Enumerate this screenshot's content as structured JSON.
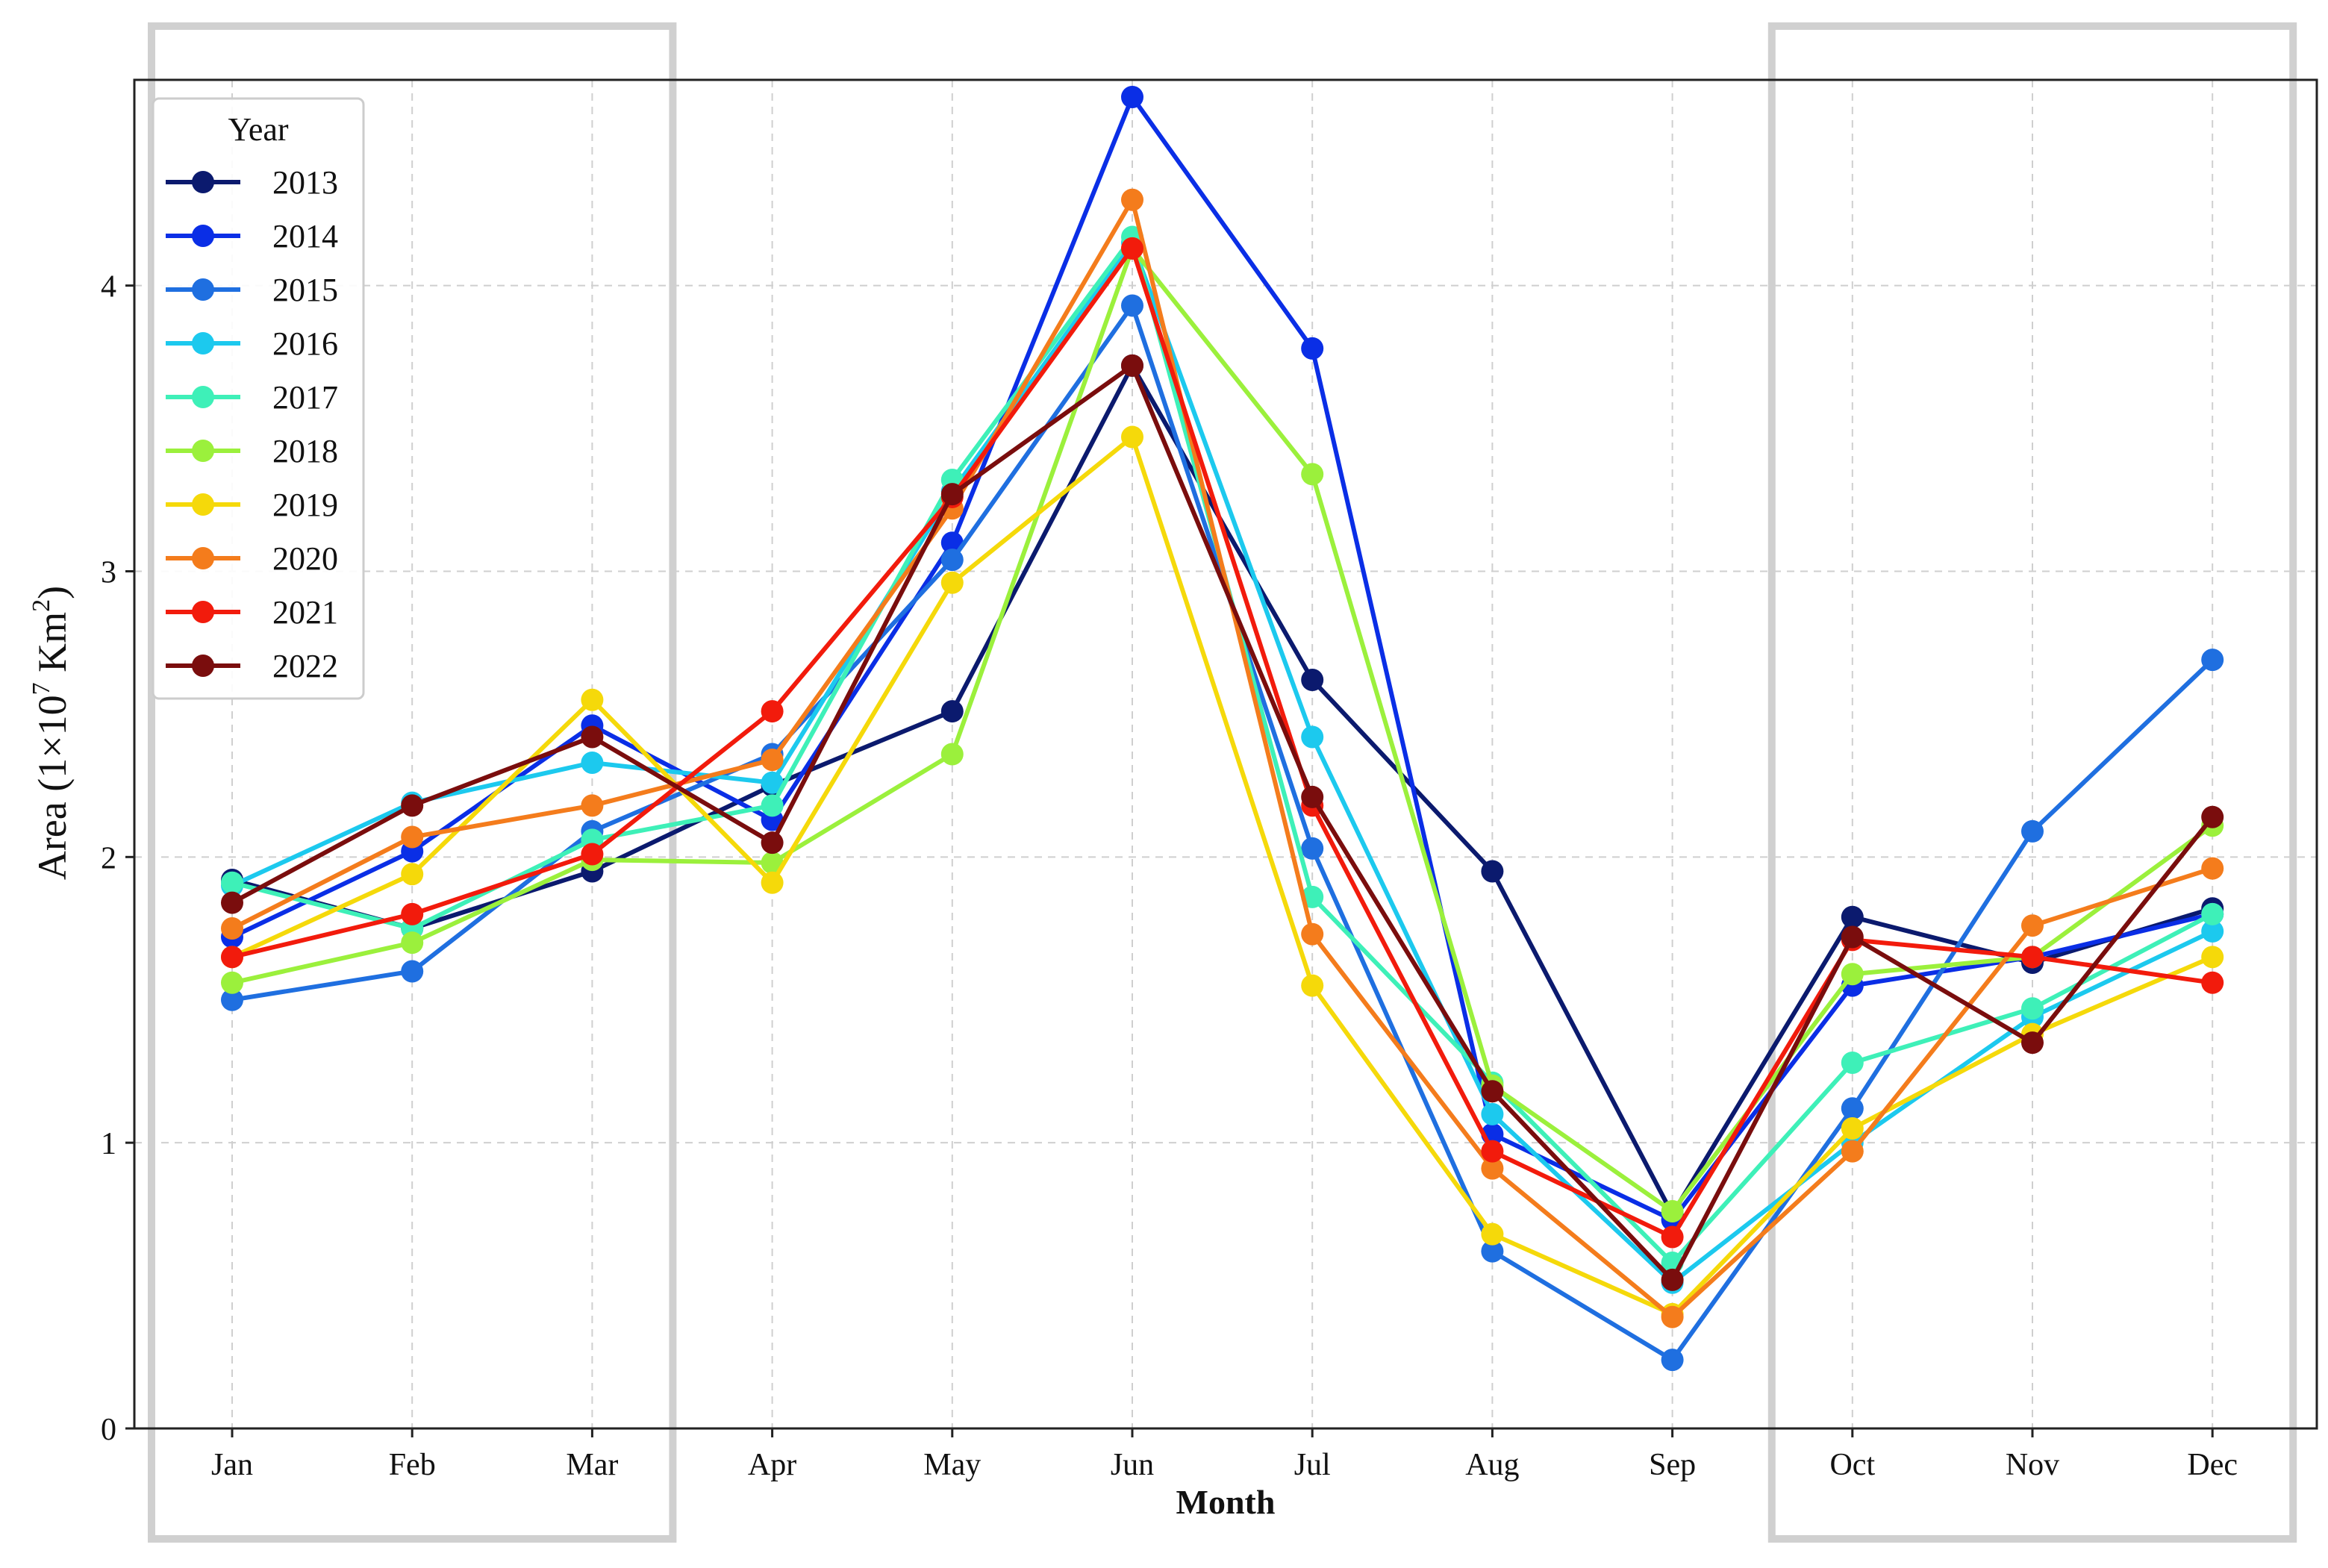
{
  "chart_data": {
    "type": "line",
    "categories": [
      "Jan",
      "Feb",
      "Mar",
      "Apr",
      "May",
      "Jun",
      "Jul",
      "Aug",
      "Sep",
      "Oct",
      "Nov",
      "Dec"
    ],
    "xlabel": "Month",
    "ylabel_main": "Area (1×10",
    "ylabel_sup1": "7",
    "ylabel_mid": " Km",
    "ylabel_sup2": "2",
    "ylabel_end": ")",
    "ylim": [
      0,
      4.72
    ],
    "yticks": [
      0,
      1,
      2,
      3,
      4
    ],
    "grid": true,
    "legend": {
      "title": "Year",
      "position": "top-left"
    },
    "highlight_months": [
      [
        "Jan",
        "Mar"
      ],
      [
        "Oct",
        "Dec"
      ]
    ],
    "series": [
      {
        "name": "2013",
        "color": "#0b1a6e",
        "values": [
          1.92,
          1.75,
          1.95,
          2.25,
          2.51,
          3.72,
          2.62,
          1.95,
          0.75,
          1.79,
          1.63,
          1.82
        ]
      },
      {
        "name": "2014",
        "color": "#0a2ee6",
        "values": [
          1.72,
          2.02,
          2.46,
          2.13,
          3.1,
          4.66,
          3.78,
          1.03,
          0.73,
          1.55,
          1.65,
          1.8
        ]
      },
      {
        "name": "2015",
        "color": "#1f6fe0",
        "values": [
          1.5,
          1.6,
          2.09,
          2.36,
          3.04,
          3.93,
          2.03,
          0.62,
          0.24,
          1.12,
          2.09,
          2.69
        ]
      },
      {
        "name": "2016",
        "color": "#1cc9ee",
        "values": [
          1.9,
          2.19,
          2.33,
          2.26,
          3.28,
          4.15,
          2.42,
          1.1,
          0.51,
          1.0,
          1.44,
          1.74
        ]
      },
      {
        "name": "2017",
        "color": "#3ef0b8",
        "values": [
          1.91,
          1.75,
          2.06,
          2.18,
          3.32,
          4.17,
          1.86,
          1.21,
          0.58,
          1.28,
          1.47,
          1.8
        ]
      },
      {
        "name": "2018",
        "color": "#9bf03c",
        "values": [
          1.56,
          1.7,
          1.99,
          1.98,
          2.36,
          4.13,
          3.34,
          1.2,
          0.76,
          1.59,
          1.65,
          2.11
        ]
      },
      {
        "name": "2019",
        "color": "#f5d90a",
        "values": [
          1.65,
          1.94,
          2.55,
          1.91,
          2.96,
          3.47,
          1.55,
          0.68,
          0.4,
          1.05,
          1.38,
          1.65
        ]
      },
      {
        "name": "2020",
        "color": "#f47c1c",
        "values": [
          1.75,
          2.07,
          2.18,
          2.34,
          3.22,
          4.3,
          1.73,
          0.91,
          0.39,
          0.97,
          1.76,
          1.96
        ]
      },
      {
        "name": "2021",
        "color": "#f21b0c",
        "values": [
          1.65,
          1.8,
          2.01,
          2.51,
          3.26,
          4.13,
          2.18,
          0.97,
          0.67,
          1.71,
          1.65,
          1.56
        ]
      },
      {
        "name": "2022",
        "color": "#7a0d0d",
        "values": [
          1.84,
          2.18,
          2.42,
          2.05,
          3.27,
          3.72,
          2.21,
          1.18,
          0.52,
          1.72,
          1.35,
          2.14
        ]
      }
    ]
  }
}
